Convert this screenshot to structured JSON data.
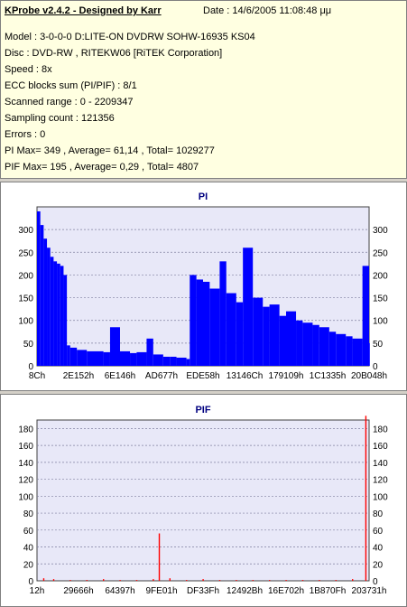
{
  "header": {
    "title": "KProbe v2.4.2 - Designed by Karr",
    "date": "Date : 14/6/2005 11:08:48 μμ"
  },
  "info_lines": [
    "Model : 3-0-0-0 D:LITE-ON DVDRW SOHW-16935 KS04",
    "Disc : DVD-RW , RITEKW06 [RiTEK Corporation]",
    "Speed : 8x",
    "ECC blocks sum (PI/PIF) : 8/1",
    "Scanned range : 0 - 2209347",
    "Sampling count : 121356",
    "Errors : 0",
    "PI Max= 349 , Average= 61,14 , Total= 1029277",
    "PIF Max= 195 , Average= 0,29 , Total= 4807"
  ],
  "colors": {
    "pi_series": "#0000ff",
    "pif_series": "#ff0000",
    "plot_bg": "#e8e8f8",
    "title_color": "#000080"
  },
  "chart_data": [
    {
      "type": "area",
      "title": "PI",
      "ylim": [
        0,
        350
      ],
      "yticks": [
        0,
        50,
        100,
        150,
        200,
        250,
        300
      ],
      "xticks": [
        "8Ch",
        "2E152h",
        "6E146h",
        "AD677h",
        "EDE58h",
        "13146Ch",
        "179109h",
        "1C1335h",
        "20B048h"
      ],
      "grid": true,
      "series": [
        {
          "x": [
            0,
            0.01,
            0.02,
            0.03,
            0.04,
            0.05,
            0.06,
            0.07,
            0.08,
            0.09,
            0.1,
            0.12,
            0.15,
            0.2,
            0.22,
            0.25,
            0.28,
            0.3,
            0.33,
            0.35,
            0.38,
            0.4,
            0.42,
            0.45,
            0.46,
            0.48,
            0.5,
            0.52,
            0.55,
            0.57,
            0.6,
            0.62,
            0.65,
            0.68,
            0.7,
            0.73,
            0.75,
            0.78,
            0.8,
            0.83,
            0.85,
            0.88,
            0.9,
            0.93,
            0.95,
            0.98,
            1.0
          ],
          "values": [
            340,
            310,
            280,
            260,
            240,
            230,
            225,
            220,
            200,
            45,
            40,
            35,
            32,
            30,
            85,
            32,
            28,
            30,
            60,
            25,
            20,
            20,
            18,
            15,
            200,
            190,
            185,
            170,
            230,
            160,
            140,
            260,
            150,
            130,
            135,
            110,
            120,
            100,
            95,
            90,
            85,
            75,
            70,
            65,
            60,
            220,
            50
          ]
        }
      ]
    },
    {
      "type": "bar",
      "title": "PIF",
      "ylim": [
        0,
        190
      ],
      "yticks": [
        0,
        20,
        40,
        60,
        80,
        100,
        120,
        140,
        160,
        180
      ],
      "xticks": [
        "12h",
        "29666h",
        "64397h",
        "9FE01h",
        "DF33Fh",
        "12492Bh",
        "16E702h",
        "1B870Fh",
        "203731h"
      ],
      "grid": true,
      "series": [
        {
          "x": [
            0.02,
            0.05,
            0.1,
            0.15,
            0.2,
            0.25,
            0.3,
            0.35,
            0.368,
            0.4,
            0.45,
            0.5,
            0.55,
            0.6,
            0.65,
            0.7,
            0.75,
            0.8,
            0.85,
            0.9,
            0.95,
            0.99
          ],
          "values": [
            3,
            2,
            1,
            1,
            2,
            1,
            1,
            2,
            56,
            3,
            1,
            2,
            1,
            1,
            1,
            1,
            1,
            1,
            1,
            1,
            2,
            195
          ]
        }
      ]
    }
  ]
}
